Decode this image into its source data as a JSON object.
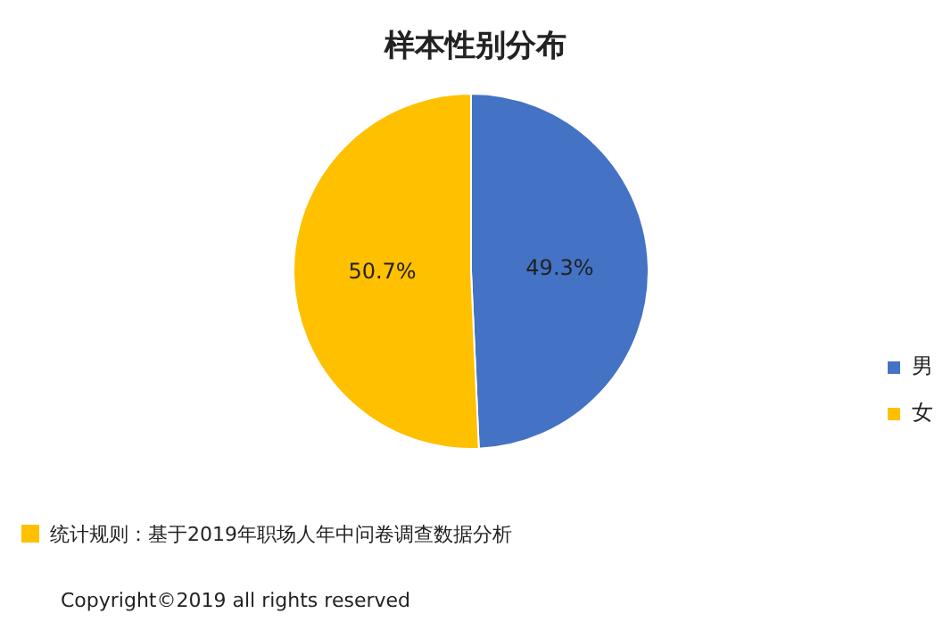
{
  "chart_data": {
    "type": "pie",
    "title": "样本性别分布",
    "categories": [
      "男",
      "女"
    ],
    "values": [
      49.3,
      50.7
    ],
    "colors": [
      "#4472c4",
      "#ffc000"
    ],
    "value_labels": [
      "49.3%",
      "50.7%"
    ],
    "legend": "right",
    "annotations": [
      "统计规则：基于2019年职场人年中问卷调查数据分析",
      "Copyright©2019 all rights reserved"
    ]
  }
}
